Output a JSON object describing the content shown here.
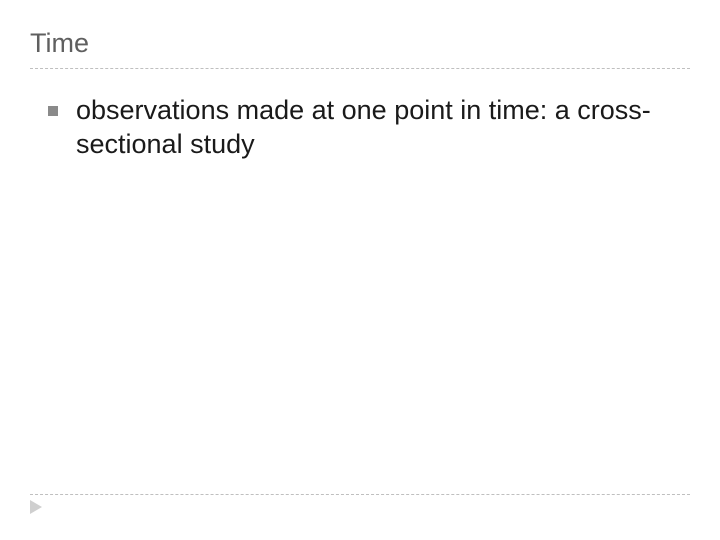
{
  "slide": {
    "title": "Time",
    "title_color": "#5f5f5f",
    "title_fontsize": 27,
    "underline_color": "#bfbfbf",
    "bullets": [
      {
        "text": "observations made at one point in time: a cross-sectional study",
        "marker_color": "#8a8a8a",
        "text_color": "#1a1a1a",
        "fontsize": 27
      }
    ],
    "footer_marker_color": "#cfcfcf",
    "background_color": "#ffffff"
  }
}
